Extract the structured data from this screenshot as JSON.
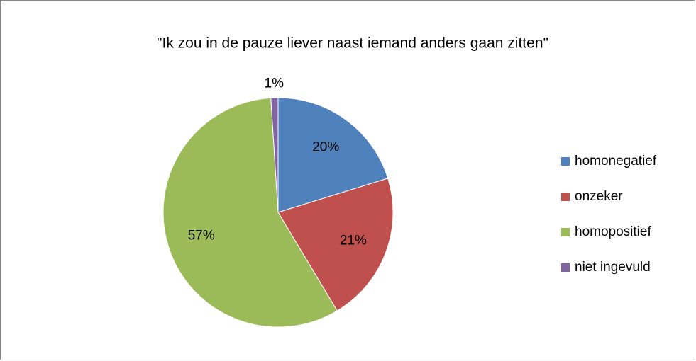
{
  "chart_data": {
    "type": "pie",
    "title": "\"Ik zou in de pauze liever naast iemand anders gaan zitten\"",
    "categories": [
      "homonegatief",
      "onzeker",
      "homopositief",
      "niet ingevuld"
    ],
    "values": [
      20,
      21,
      57,
      1
    ],
    "value_labels": [
      "20%",
      "21%",
      "57%",
      "1%"
    ],
    "colors": [
      "#4f81bd",
      "#c0504d",
      "#9bbb59",
      "#8064a2"
    ],
    "legend": "right"
  }
}
